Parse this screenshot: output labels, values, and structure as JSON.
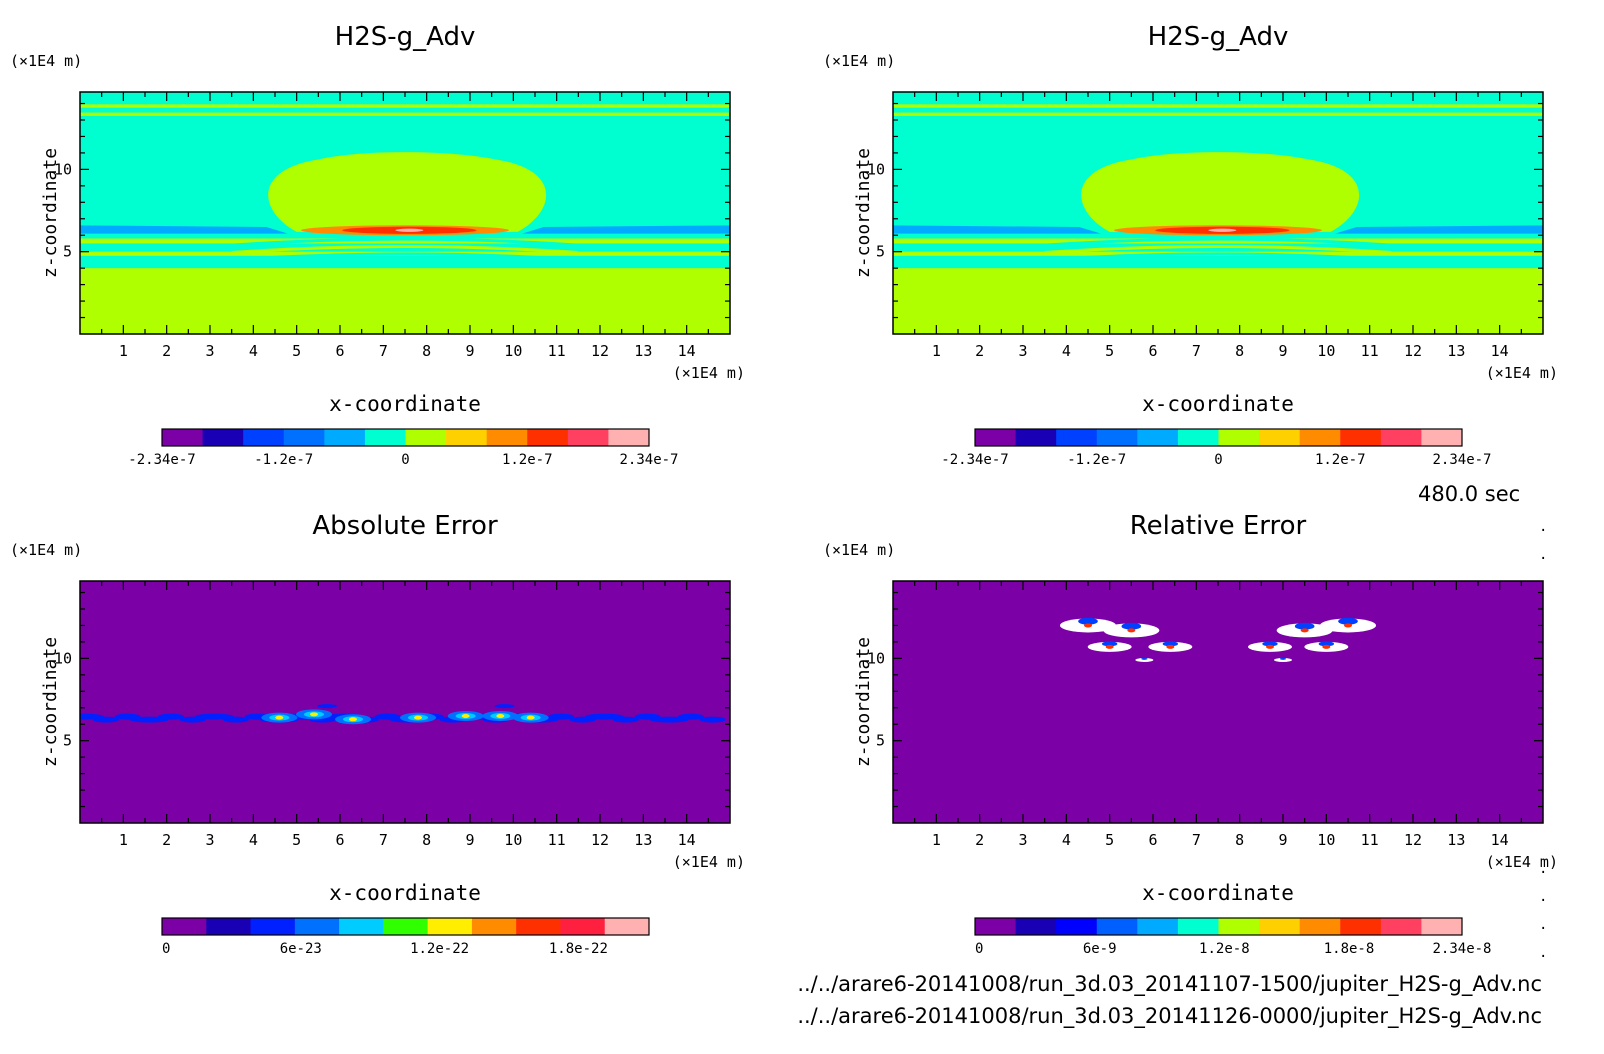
{
  "chart_data": [
    {
      "type": "heatmap",
      "title": "H2S-g_Adv",
      "xlabel": "x-coordinate",
      "ylabel": "z-coordinate",
      "x_unit": "(×1E4 m)",
      "y_unit": "(×1E4 m)",
      "xlim": [
        0,
        15
      ],
      "ylim": [
        0,
        14.7
      ],
      "x_ticks": [
        "1",
        "2",
        "3",
        "4",
        "5",
        "6",
        "7",
        "8",
        "9",
        "10",
        "11",
        "12",
        "13",
        "14"
      ],
      "y_ticks": [
        "5",
        "10"
      ],
      "colorbar": {
        "levels": [
          "-2.34e-7",
          "-1.2e-7",
          "0",
          "1.2e-7",
          "2.34e-7"
        ],
        "colors": [
          "#7b00a5",
          "#1a00b4",
          "#0040ff",
          "#0070ff",
          "#00aaff",
          "#00ffd0",
          "#b0ff00",
          "#ffd000",
          "#ff8c00",
          "#ff3000",
          "#ff4060",
          "#ffb0b0"
        ]
      },
      "features": {
        "background": "#00ffd0",
        "lower_region_color": "#b0ff00",
        "dome_color": "#b0ff00",
        "max_core_color": "#ff3000"
      }
    },
    {
      "type": "heatmap",
      "title": "H2S-g_Adv",
      "xlabel": "x-coordinate",
      "ylabel": "z-coordinate",
      "x_unit": "(×1E4 m)",
      "y_unit": "(×1E4 m)",
      "xlim": [
        0,
        15
      ],
      "ylim": [
        0,
        14.7
      ],
      "x_ticks": [
        "1",
        "2",
        "3",
        "4",
        "5",
        "6",
        "7",
        "8",
        "9",
        "10",
        "11",
        "12",
        "13",
        "14"
      ],
      "y_ticks": [
        "5",
        "10"
      ],
      "colorbar": {
        "levels": [
          "-2.34e-7",
          "-1.2e-7",
          "0",
          "1.2e-7",
          "2.34e-7"
        ],
        "colors": [
          "#7b00a5",
          "#1a00b4",
          "#0040ff",
          "#0070ff",
          "#00aaff",
          "#00ffd0",
          "#b0ff00",
          "#ffd000",
          "#ff8c00",
          "#ff3000",
          "#ff4060",
          "#ffb0b0"
        ]
      },
      "features": {
        "background": "#00ffd0",
        "lower_region_color": "#b0ff00",
        "dome_color": "#b0ff00",
        "max_core_color": "#ff3000"
      }
    },
    {
      "type": "heatmap",
      "title": "Absolute Error",
      "xlabel": "x-coordinate",
      "ylabel": "z-coordinate",
      "x_unit": "(×1E4 m)",
      "y_unit": "(×1E4 m)",
      "xlim": [
        0,
        15
      ],
      "ylim": [
        0,
        14.7
      ],
      "x_ticks": [
        "1",
        "2",
        "3",
        "4",
        "5",
        "6",
        "7",
        "8",
        "9",
        "10",
        "11",
        "12",
        "13",
        "14"
      ],
      "y_ticks": [
        "5",
        "10"
      ],
      "colorbar": {
        "levels": [
          "0",
          "6e-23",
          "1.2e-22",
          "1.8e-22"
        ],
        "colors": [
          "#7b00a5",
          "#1a00b4",
          "#0020ff",
          "#0070ff",
          "#00ccff",
          "#30ff00",
          "#ffee00",
          "#ff8c00",
          "#ff3000",
          "#ff2040",
          "#ffb0b0"
        ]
      },
      "features": {
        "background": "#7b00a5",
        "error_band_z": 6.4
      }
    },
    {
      "type": "heatmap",
      "title": "Relative Error",
      "xlabel": "x-coordinate",
      "ylabel": "z-coordinate",
      "x_unit": "(×1E4 m)",
      "y_unit": "(×1E4 m)",
      "xlim": [
        0,
        15
      ],
      "ylim": [
        0,
        14.7
      ],
      "x_ticks": [
        "1",
        "2",
        "3",
        "4",
        "5",
        "6",
        "7",
        "8",
        "9",
        "10",
        "11",
        "12",
        "13",
        "14"
      ],
      "y_ticks": [
        "5",
        "10"
      ],
      "colorbar": {
        "levels": [
          "0",
          "6e-9",
          "1.2e-8",
          "1.8e-8",
          "2.34e-8"
        ],
        "colors": [
          "#7b00a5",
          "#1a00b4",
          "#0000ff",
          "#0060ff",
          "#00aaff",
          "#00ffd0",
          "#b0ff00",
          "#ffd000",
          "#ff8c00",
          "#ff3000",
          "#ff4060",
          "#ffb0b0"
        ]
      },
      "features": {
        "background": "#7b00a5",
        "blobs": [
          [
            4.5,
            12.0
          ],
          [
            5.5,
            11.7
          ],
          [
            5.0,
            10.7
          ],
          [
            6.4,
            10.7
          ],
          [
            9.5,
            11.7
          ],
          [
            10.5,
            12.0
          ],
          [
            8.7,
            10.7
          ],
          [
            10.0,
            10.7
          ],
          [
            5.8,
            9.9
          ],
          [
            9.0,
            9.9
          ]
        ]
      }
    }
  ],
  "time_label": "480.0 sec",
  "file_paths": [
    "../../arare6-20141008/run_3d.03_20141107-1500/jupiter_H2S-g_Adv.nc",
    "../../arare6-20141008/run_3d.03_20141126-0000/jupiter_H2S-g_Adv.nc"
  ]
}
